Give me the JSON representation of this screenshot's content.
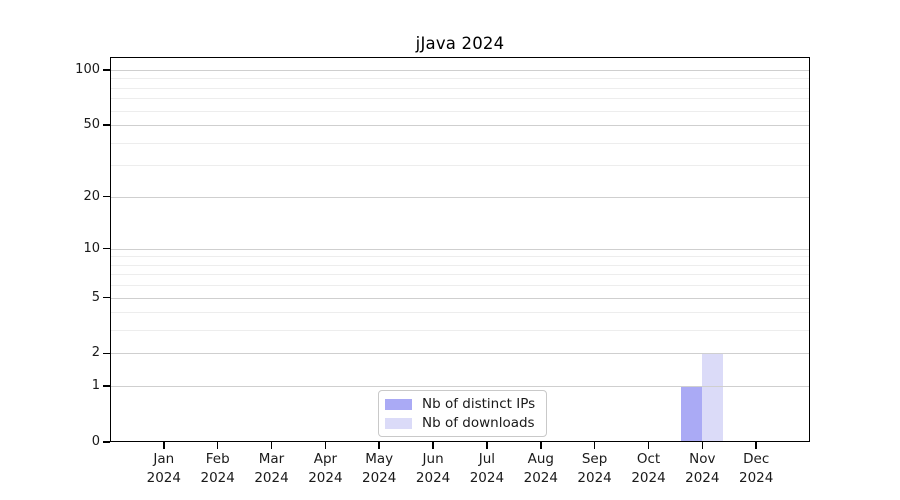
{
  "title": "jJava 2024",
  "colors": {
    "axis": "#000000",
    "major_gridline": "#cfcfcf",
    "minor_gridline": "#ededed",
    "legend_border": "#c9c9c9",
    "background": "#ffffff"
  },
  "chart_data": {
    "type": "bar",
    "title": "jJava 2024",
    "categories": [
      "Jan 2024",
      "Feb 2024",
      "Mar 2024",
      "Apr 2024",
      "May 2024",
      "Jun 2024",
      "Jul 2024",
      "Aug 2024",
      "Sep 2024",
      "Oct 2024",
      "Nov 2024",
      "Dec 2024"
    ],
    "series": [
      {
        "name": "Nb of distinct IPs",
        "color": "#aaaaf5",
        "values": [
          0,
          0,
          0,
          0,
          0,
          0,
          0,
          0,
          0,
          0,
          1,
          0
        ]
      },
      {
        "name": "Nb of downloads",
        "color": "#dbdbf8",
        "values": [
          0,
          0,
          0,
          0,
          0,
          0,
          0,
          0,
          0,
          0,
          2,
          0
        ]
      }
    ],
    "yscale": "log10(1+x)",
    "ylim": [
      0,
      100
    ],
    "y_ticks": [
      0,
      1,
      2,
      5,
      10,
      20,
      50,
      100
    ],
    "y_minor_gridlines": [
      3,
      4,
      6,
      7,
      8,
      9,
      30,
      40,
      60,
      70,
      80,
      90
    ],
    "grid": true,
    "legend_position": "bottom-center"
  }
}
